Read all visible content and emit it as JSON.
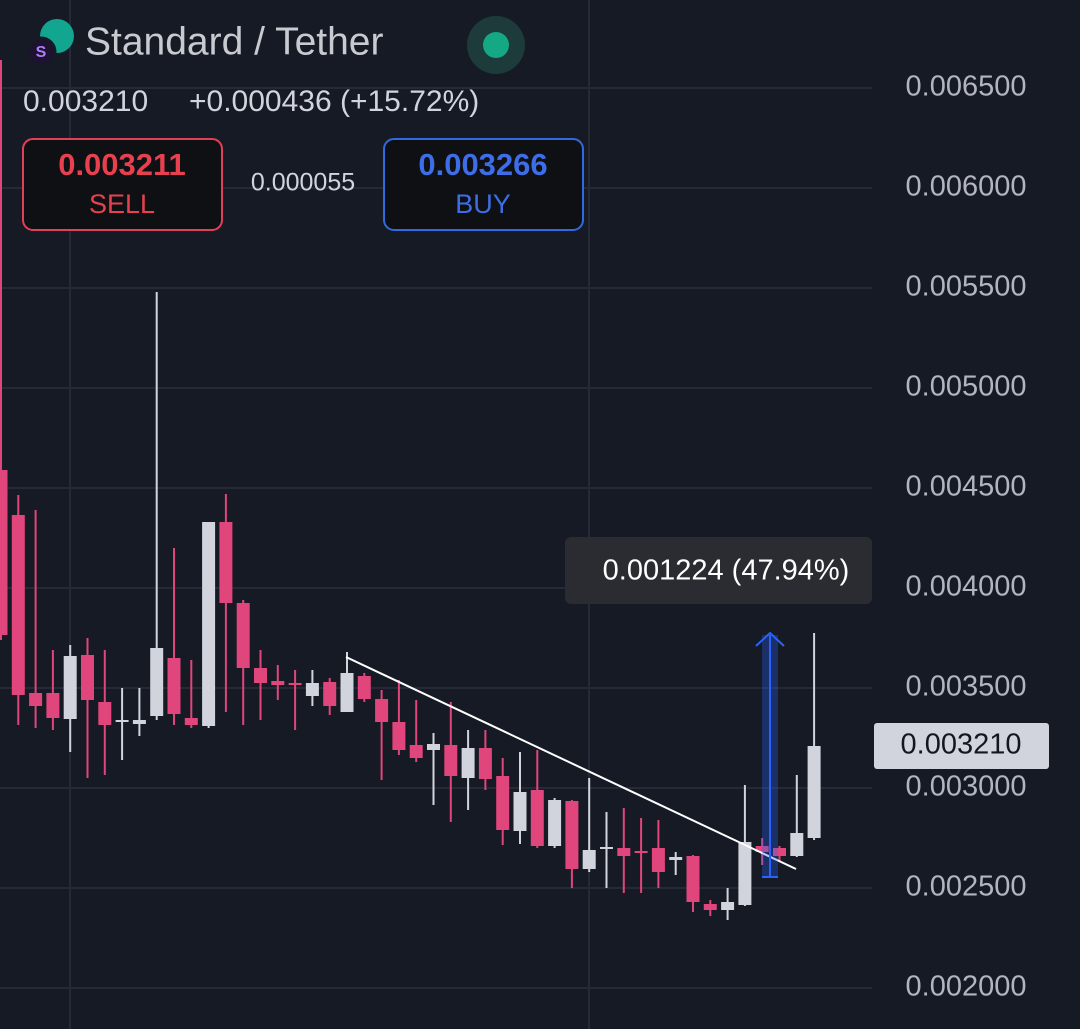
{
  "header": {
    "title": "Standard / Tether",
    "last": "0.003210",
    "change": "+0.000436 (+15.72%)",
    "sell_price": "0.003211",
    "sell_label": "SELL",
    "spread": "0.000055",
    "buy_price": "0.003266",
    "buy_label": "BUY"
  },
  "chart_data": {
    "type": "candlestick",
    "up_color": "#d1d4dc",
    "down_color": "#e0457b",
    "open": [
      0.00459,
      0.004365,
      0.003475,
      0.003475,
      0.003345,
      0.003665,
      0.00343,
      0.00333,
      0.00332,
      0.00336,
      0.00365,
      0.00335,
      0.00331,
      0.00433,
      0.003925,
      0.0036,
      0.003535,
      0.003525,
      0.00346,
      0.00353,
      0.00338,
      0.00356,
      0.003445,
      0.00333,
      0.003215,
      0.00319,
      0.003215,
      0.00305,
      0.0032,
      0.00306,
      0.002785,
      0.00299,
      0.00271,
      0.002935,
      0.002595,
      0.0027,
      0.0027,
      0.002685,
      0.0027,
      0.00264,
      0.00266,
      0.00242,
      0.00239,
      0.002415,
      0.00271,
      0.0027,
      0.00266,
      0.00275
    ],
    "high": [
      0.00664,
      0.004465,
      0.00439,
      0.00369,
      0.003715,
      0.00375,
      0.00369,
      0.0035,
      0.0035,
      0.00548,
      0.0042,
      0.00364,
      0.00433,
      0.00447,
      0.00394,
      0.00369,
      0.003615,
      0.00359,
      0.00359,
      0.00355,
      0.00368,
      0.003575,
      0.00349,
      0.00354,
      0.00344,
      0.003275,
      0.00343,
      0.00329,
      0.00329,
      0.00315,
      0.00318,
      0.00319,
      0.00295,
      0.00294,
      0.00305,
      0.00288,
      0.0029,
      0.00285,
      0.00284,
      0.00268,
      0.002665,
      0.00244,
      0.0025,
      0.003015,
      0.00275,
      0.00271,
      0.003065,
      0.003775
    ],
    "low": [
      0.00374,
      0.003315,
      0.0033,
      0.00329,
      0.00318,
      0.00305,
      0.003065,
      0.00314,
      0.00326,
      0.00334,
      0.003315,
      0.0033,
      0.0033,
      0.00338,
      0.003315,
      0.00334,
      0.00344,
      0.00329,
      0.00341,
      0.003365,
      0.00338,
      0.00343,
      0.00304,
      0.003165,
      0.00313,
      0.002915,
      0.00283,
      0.00289,
      0.00299,
      0.002715,
      0.00272,
      0.0027,
      0.0027,
      0.0025,
      0.00258,
      0.0025,
      0.002475,
      0.002475,
      0.0025,
      0.002565,
      0.00238,
      0.00236,
      0.00234,
      0.00241,
      0.002615,
      0.00263,
      0.002655,
      0.00274
    ],
    "close": [
      0.003765,
      0.003465,
      0.00341,
      0.00335,
      0.00366,
      0.00344,
      0.003315,
      0.00334,
      0.00334,
      0.0037,
      0.00337,
      0.003315,
      0.00433,
      0.003925,
      0.0036,
      0.003525,
      0.003515,
      0.003515,
      0.003525,
      0.00341,
      0.003575,
      0.003445,
      0.00333,
      0.00319,
      0.00315,
      0.00322,
      0.00306,
      0.0032,
      0.003045,
      0.00279,
      0.00298,
      0.00271,
      0.00294,
      0.002595,
      0.00269,
      0.002705,
      0.00266,
      0.002675,
      0.00258,
      0.002655,
      0.00243,
      0.00239,
      0.00243,
      0.00273,
      0.00268,
      0.00266,
      0.002775,
      0.00321
    ],
    "ylim": [
      0.001795,
      0.00694
    ],
    "yticks": [
      {
        "value": 0.002,
        "label": "0.002000"
      },
      {
        "value": 0.0025,
        "label": "0.002500"
      },
      {
        "value": 0.003,
        "label": "0.003000"
      },
      {
        "value": 0.0035,
        "label": "0.003500"
      },
      {
        "value": 0.004,
        "label": "0.004000"
      },
      {
        "value": 0.0045,
        "label": "0.004500"
      },
      {
        "value": 0.005,
        "label": "0.005000"
      },
      {
        "value": 0.0055,
        "label": "0.005500"
      },
      {
        "value": 0.006,
        "label": "0.006000"
      },
      {
        "value": 0.0065,
        "label": "0.006500"
      }
    ],
    "grid": true,
    "last_price": {
      "value": 0.00321,
      "label": "0.003210"
    },
    "annotation": "0.001224 (47.94%)"
  }
}
